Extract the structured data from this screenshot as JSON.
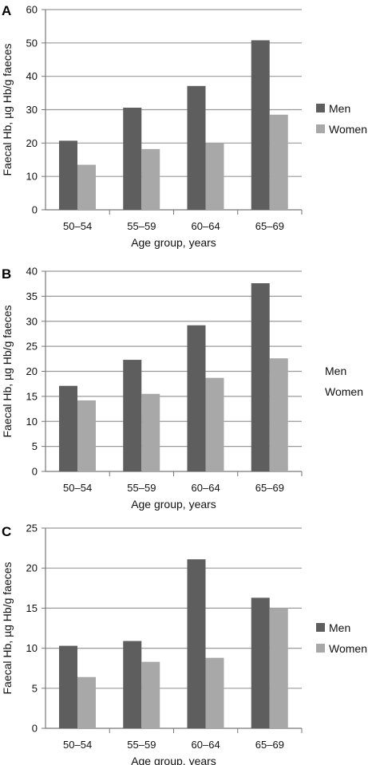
{
  "colors": {
    "men": "#5e5e5e",
    "women": "#a8a8a8",
    "grid": "#9a9a9a",
    "axis": "#777777"
  },
  "chart_data": [
    {
      "panel": "A",
      "type": "bar",
      "categories": [
        "50–54",
        "55–59",
        "60–64",
        "65–69"
      ],
      "series": [
        {
          "name": "Men",
          "values": [
            20.7,
            30.6,
            37.1,
            50.8
          ]
        },
        {
          "name": "Women",
          "values": [
            13.5,
            18.2,
            20.0,
            28.5
          ]
        }
      ],
      "xlabel": "Age group, years",
      "ylabel": "Faecal Hb, µg Hb/g faeces",
      "ylim": [
        0,
        60
      ],
      "yticks": [
        0,
        10,
        20,
        30,
        40,
        50,
        60
      ],
      "grid": true,
      "legend": {
        "show_swatches": true,
        "position": "right"
      }
    },
    {
      "panel": "B",
      "type": "bar",
      "categories": [
        "50–54",
        "55–59",
        "60–64",
        "65–69"
      ],
      "series": [
        {
          "name": "Men",
          "values": [
            17.1,
            22.3,
            29.2,
            37.6
          ]
        },
        {
          "name": "Women",
          "values": [
            14.2,
            15.5,
            18.7,
            22.6
          ]
        }
      ],
      "xlabel": "Age group, years",
      "ylabel": "Faecal Hb, µg Hb/g faeces",
      "ylim": [
        0,
        40
      ],
      "yticks": [
        0,
        5,
        10,
        15,
        20,
        25,
        30,
        35,
        40
      ],
      "grid": true,
      "legend": {
        "show_swatches": false,
        "position": "right"
      }
    },
    {
      "panel": "C",
      "type": "bar",
      "categories": [
        "50–54",
        "55–59",
        "60–64",
        "65–69"
      ],
      "series": [
        {
          "name": "Men",
          "values": [
            10.3,
            10.9,
            21.1,
            16.3
          ]
        },
        {
          "name": "Women",
          "values": [
            6.4,
            8.3,
            8.8,
            15.0
          ]
        }
      ],
      "xlabel": "Age group, years",
      "ylabel": "Faecal Hb, µg Hb/g faeces",
      "ylim": [
        0,
        25
      ],
      "yticks": [
        0,
        5,
        10,
        15,
        20,
        25
      ],
      "grid": true,
      "legend": {
        "show_swatches": true,
        "position": "right"
      }
    }
  ]
}
